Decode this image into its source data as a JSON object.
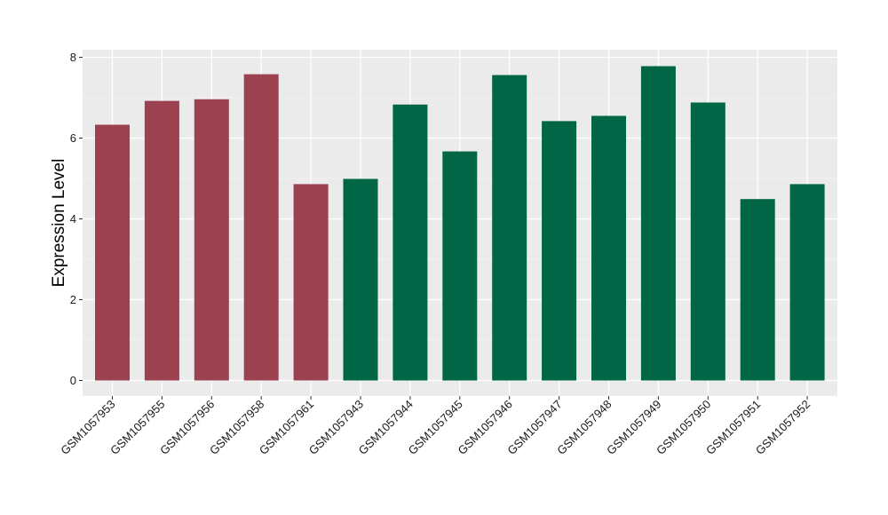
{
  "chart_data": {
    "type": "bar",
    "title": "",
    "xlabel": "",
    "ylabel": "Expression Level",
    "ylim": [
      0,
      8.4
    ],
    "yticks": [
      0,
      2,
      4,
      6,
      8
    ],
    "grid": true,
    "categories": [
      "GSM1057953",
      "GSM1057955",
      "GSM1057956",
      "GSM1057958",
      "GSM1057961",
      "GSM1057943",
      "GSM1057944",
      "GSM1057945",
      "GSM1057946",
      "GSM1057947",
      "GSM1057948",
      "GSM1057949",
      "GSM1057950",
      "GSM1057951",
      "GSM1057952"
    ],
    "values": [
      6.33,
      6.92,
      6.96,
      7.58,
      4.86,
      4.99,
      6.83,
      5.67,
      7.56,
      6.42,
      6.55,
      7.78,
      6.88,
      4.49,
      4.86
    ],
    "groups": [
      "a",
      "a",
      "a",
      "a",
      "a",
      "b",
      "b",
      "b",
      "b",
      "b",
      "b",
      "b",
      "b",
      "b",
      "b"
    ],
    "colors": {
      "a": "#9b4150",
      "b": "#006645"
    }
  }
}
